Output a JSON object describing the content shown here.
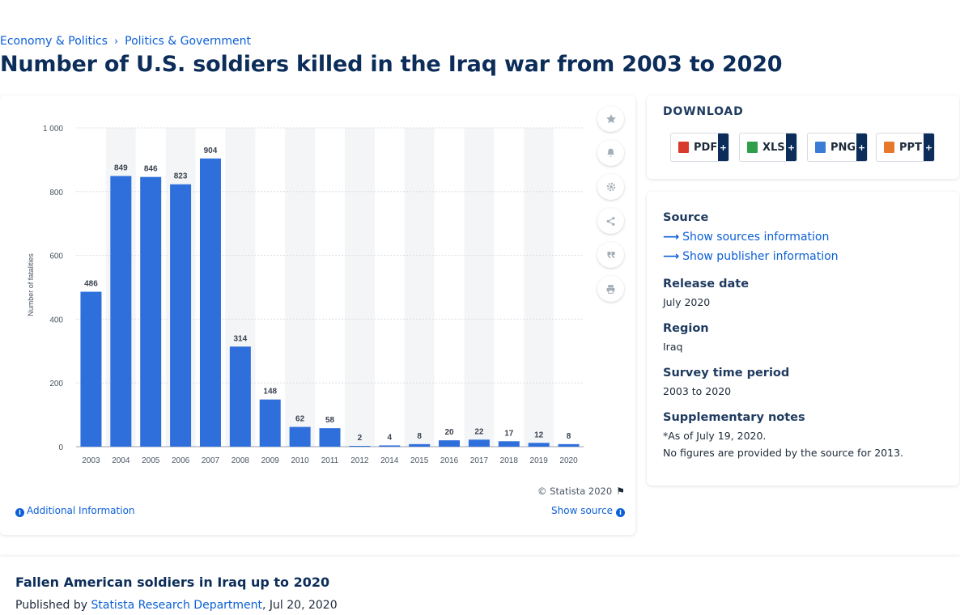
{
  "breadcrumb": {
    "items": [
      "Economy & Politics",
      "Politics & Government"
    ],
    "separator": "›"
  },
  "page_title": "Number of U.S. soldiers killed in the Iraq war from 2003 to 2020",
  "chart": {
    "copyright": "© Statista 2020",
    "additional_info": "Additional Information",
    "show_source": "Show source"
  },
  "chart_data": {
    "type": "bar",
    "categories": [
      "2003",
      "2004",
      "2005",
      "2006",
      "2007",
      "2008",
      "2009",
      "2010",
      "2011",
      "2012",
      "2014",
      "2015",
      "2016",
      "2017",
      "2018",
      "2019",
      "2020"
    ],
    "values": [
      486,
      849,
      846,
      823,
      904,
      314,
      148,
      62,
      58,
      2,
      4,
      8,
      20,
      22,
      17,
      12,
      8
    ],
    "data_labels": [
      "486",
      "849",
      "846",
      "823",
      "904",
      "314",
      "148",
      "62",
      "58",
      "2",
      "4",
      "8",
      "20",
      "22",
      "17",
      "12",
      "8"
    ],
    "ylabel": "Number of fatalities",
    "ylim": [
      0,
      1000
    ],
    "yticks": [
      0,
      200,
      400,
      600,
      800,
      1000
    ],
    "ytick_labels": [
      "0",
      "200",
      "400",
      "600",
      "800",
      "1 000"
    ],
    "bar_color": "#2f6fdc",
    "band_color": "#f4f5f7",
    "grid": true,
    "legend": false
  },
  "download": {
    "title": "DOWNLOAD",
    "buttons": [
      {
        "label": "PDF",
        "icon": "pdf-file-icon",
        "color": "#d93a2b"
      },
      {
        "label": "XLS",
        "icon": "xls-file-icon",
        "color": "#2e9e4a"
      },
      {
        "label": "PNG",
        "icon": "png-file-icon",
        "color": "#3a7bd5"
      },
      {
        "label": "PPT",
        "icon": "ppt-file-icon",
        "color": "#e8792b"
      }
    ],
    "plus": "+"
  },
  "meta": {
    "source_label": "Source",
    "show_sources": "Show sources information",
    "show_publisher": "Show publisher information",
    "release_date_label": "Release date",
    "release_date": "July 2020",
    "region_label": "Region",
    "region": "Iraq",
    "survey_period_label": "Survey time period",
    "survey_period": "2003 to 2020",
    "supp_notes_label": "Supplementary notes",
    "supp_note_1": "*As of July 19, 2020.",
    "supp_note_2": "No figures are provided by the source for 2013."
  },
  "bottom": {
    "title": "Fallen American soldiers in Iraq up to 2020",
    "published_by": "Published by",
    "publisher": "Statista Research Department",
    "date": ", Jul 20, 2020"
  },
  "toolbar_icons": [
    "star-icon",
    "bell-icon",
    "gear-icon",
    "share-icon",
    "quote-icon",
    "print-icon"
  ]
}
